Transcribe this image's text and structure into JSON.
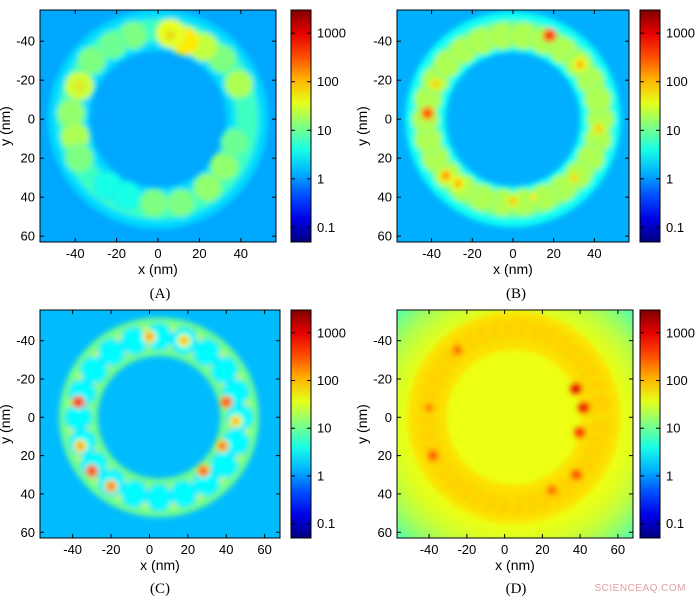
{
  "chart_data": [
    {
      "panel": "(A)",
      "type": "heatmap",
      "xlabel": "x (nm)",
      "ylabel": "y (nm)",
      "x_ticks": [
        -40,
        -20,
        0,
        20,
        40
      ],
      "y_ticks": [
        -40,
        -20,
        0,
        20,
        40,
        60
      ],
      "xlim": [
        -57,
        57
      ],
      "ylim": [
        -56,
        63
      ],
      "y_axis_reversed": true,
      "colorbar": {
        "scale": "log",
        "ticks": [
          "0.1",
          "1",
          "10",
          "100",
          "1000"
        ],
        "range": [
          0.05,
          3000
        ]
      },
      "background_value": 1.2,
      "ring": {
        "center": [
          0,
          0
        ],
        "radius": 43,
        "band_value": 6
      },
      "spheres": [
        {
          "x": -12,
          "y": -43,
          "value": 12
        },
        {
          "x": -22,
          "y": -38,
          "value": 10
        },
        {
          "x": -32,
          "y": -30,
          "value": 12
        },
        {
          "x": -38,
          "y": -17,
          "value": 30
        },
        {
          "x": -42,
          "y": -3,
          "value": 15
        },
        {
          "x": -40,
          "y": 9,
          "value": 20
        },
        {
          "x": -38,
          "y": 20,
          "value": 12
        },
        {
          "x": -24,
          "y": 34,
          "value": 4
        },
        {
          "x": -15,
          "y": 39,
          "value": 4
        },
        {
          "x": -2,
          "y": 43,
          "value": 12
        },
        {
          "x": 11,
          "y": 43,
          "value": 12
        },
        {
          "x": 24,
          "y": 35,
          "value": 15
        },
        {
          "x": 32,
          "y": 24,
          "value": 15
        },
        {
          "x": 37,
          "y": 12,
          "value": 10
        },
        {
          "x": 39,
          "y": -18,
          "value": 20
        },
        {
          "x": 31,
          "y": -31,
          "value": 12
        },
        {
          "x": 22,
          "y": -37,
          "value": 25
        },
        {
          "x": 13,
          "y": -40,
          "value": 60
        },
        {
          "x": 6,
          "y": -44,
          "value": 40
        }
      ],
      "hotspots": [
        {
          "x": -38,
          "y": -17,
          "value": 80
        },
        {
          "x": 6,
          "y": -43,
          "value": 100
        }
      ]
    },
    {
      "panel": "(B)",
      "type": "heatmap",
      "xlabel": "x (nm)",
      "ylabel": "y (nm)",
      "x_ticks": [
        -40,
        -20,
        0,
        20,
        40
      ],
      "y_ticks": [
        -40,
        -20,
        0,
        20,
        40,
        60
      ],
      "xlim": [
        -57,
        57
      ],
      "ylim": [
        -56,
        63
      ],
      "y_axis_reversed": true,
      "colorbar": {
        "scale": "log",
        "ticks": [
          "0.1",
          "1",
          "10",
          "100",
          "1000"
        ],
        "range": [
          0.05,
          3000
        ]
      },
      "background_value": 1.3,
      "ring": {
        "center": [
          0,
          0
        ],
        "radius": 43,
        "band_value": 10
      },
      "sphere_count": 26,
      "sphere_value": 20,
      "hotspots": [
        {
          "x": -42,
          "y": -3,
          "value": 500
        },
        {
          "x": 18,
          "y": -43,
          "value": 800
        },
        {
          "x": -33,
          "y": 29,
          "value": 200
        },
        {
          "x": -27,
          "y": 33,
          "value": 150
        },
        {
          "x": 33,
          "y": -28,
          "value": 150
        },
        {
          "x": 42,
          "y": 5,
          "value": 100
        },
        {
          "x": 0,
          "y": 42,
          "value": 100
        },
        {
          "x": -38,
          "y": -18,
          "value": 100
        },
        {
          "x": 30,
          "y": 30,
          "value": 80
        },
        {
          "x": 10,
          "y": 40,
          "value": 60
        }
      ]
    },
    {
      "panel": "(C)",
      "type": "heatmap",
      "xlabel": "x (nm)",
      "ylabel": "y (nm)",
      "x_ticks": [
        -40,
        -20,
        0,
        20,
        40,
        60
      ],
      "y_ticks": [
        -40,
        -20,
        0,
        20,
        40,
        60
      ],
      "xlim": [
        -57,
        68
      ],
      "ylim": [
        -56,
        63
      ],
      "y_axis_reversed": true,
      "colorbar": {
        "scale": "log",
        "ticks": [
          "0.1",
          "1",
          "10",
          "100",
          "1000"
        ],
        "range": [
          0.05,
          3000
        ]
      },
      "background_value": 1.5,
      "ring": {
        "center": [
          5,
          0
        ],
        "radius": 42,
        "band_value": 30
      },
      "sphere_count": 20,
      "sphere_value": 3,
      "hotspots": [
        {
          "x": -37,
          "y": -8,
          "value": 800
        },
        {
          "x": 40,
          "y": -8,
          "value": 500
        },
        {
          "x": 28,
          "y": 28,
          "value": 400
        },
        {
          "x": -30,
          "y": 28,
          "value": 600
        },
        {
          "x": -20,
          "y": 36,
          "value": 300
        },
        {
          "x": 38,
          "y": 15,
          "value": 300
        },
        {
          "x": -36,
          "y": 15,
          "value": 200
        },
        {
          "x": 0,
          "y": -42,
          "value": 200
        },
        {
          "x": 18,
          "y": -40,
          "value": 150
        },
        {
          "x": 45,
          "y": 2,
          "value": 150
        }
      ]
    },
    {
      "panel": "(D)",
      "type": "heatmap",
      "xlabel": "x (nm)",
      "ylabel": "y (nm)",
      "x_ticks": [
        -40,
        -20,
        0,
        20,
        40,
        60
      ],
      "y_ticks": [
        -40,
        -20,
        0,
        20,
        40,
        60
      ],
      "xlim": [
        -57,
        68
      ],
      "ylim": [
        -56,
        63
      ],
      "y_axis_reversed": true,
      "colorbar": {
        "scale": "log",
        "ticks": [
          "0.1",
          "1",
          "10",
          "100",
          "1000"
        ],
        "range": [
          0.05,
          3000
        ]
      },
      "background_value": 40,
      "edge_value": 3,
      "ring": {
        "center": [
          5,
          0
        ],
        "radius": 46,
        "band_value": 200
      },
      "sphere_count": 40,
      "sphere_value": 80,
      "hotspots": [
        {
          "x": 38,
          "y": -15,
          "value": 1500
        },
        {
          "x": 42,
          "y": -5,
          "value": 1200
        },
        {
          "x": 40,
          "y": 8,
          "value": 800
        },
        {
          "x": 38,
          "y": 30,
          "value": 600
        },
        {
          "x": -38,
          "y": 20,
          "value": 500
        },
        {
          "x": -25,
          "y": -35,
          "value": 400
        },
        {
          "x": 25,
          "y": 38,
          "value": 400
        },
        {
          "x": -40,
          "y": -5,
          "value": 300
        }
      ]
    }
  ],
  "watermark": "SCIENCEAQ.COM"
}
